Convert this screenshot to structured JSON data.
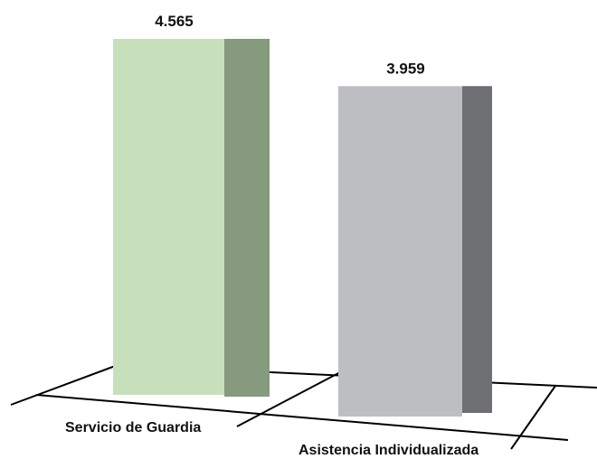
{
  "chart_data": {
    "type": "bar",
    "categories": [
      "Servicio de Guardia",
      "Asistencia Individualizada"
    ],
    "values": [
      4565,
      3959
    ],
    "data_labels": [
      "4.565",
      "3.959"
    ],
    "title": "",
    "xlabel": "",
    "ylabel": "",
    "ylim": [
      0,
      4565
    ],
    "grid": false,
    "legend": "none",
    "style": "3d",
    "colors": {
      "bars": [
        {
          "front": "#c8dfbc",
          "side": "#869a7e"
        },
        {
          "front": "#bdbec2",
          "side": "#6e6f73"
        }
      ],
      "axis": "#000000"
    }
  }
}
